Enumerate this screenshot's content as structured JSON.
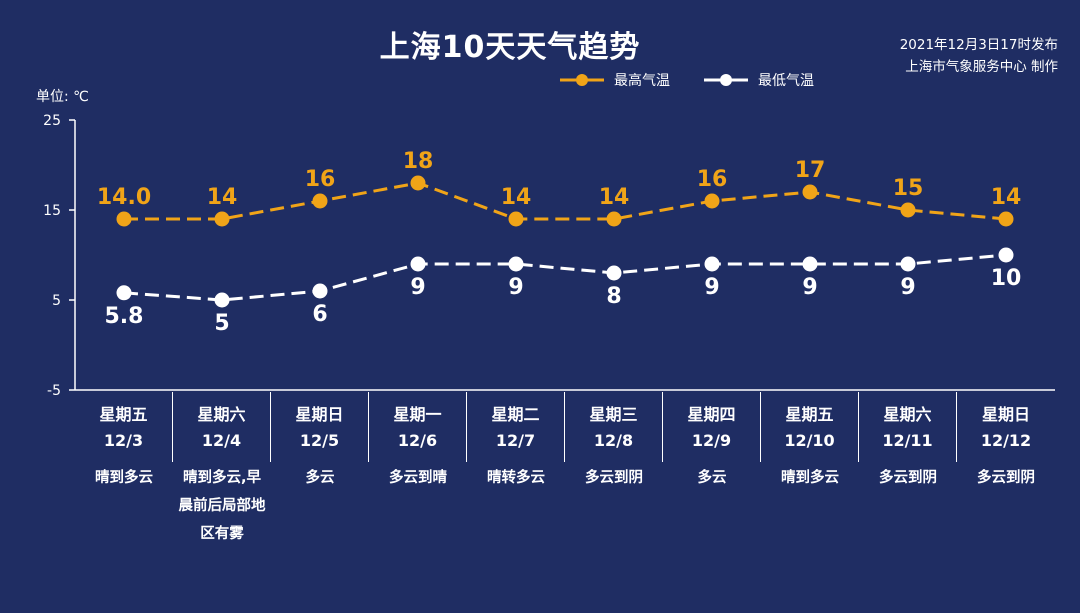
{
  "header": {
    "title": "上海10天天气趋势",
    "publish_line1": "2021年12月3日17时发布",
    "publish_line2": "上海市气象服务中心 制作",
    "unit_label": "单位: ℃"
  },
  "colors": {
    "background": "#1f2d63",
    "high": "#f0a418",
    "low": "#ffffff"
  },
  "days": [
    {
      "dow": "星期五",
      "date": "12/3",
      "desc": "晴到多云"
    },
    {
      "dow": "星期六",
      "date": "12/4",
      "desc": "晴到多云,早晨前后局部地区有雾"
    },
    {
      "dow": "星期日",
      "date": "12/5",
      "desc": "多云"
    },
    {
      "dow": "星期一",
      "date": "12/6",
      "desc": "多云到晴"
    },
    {
      "dow": "星期二",
      "date": "12/7",
      "desc": "晴转多云"
    },
    {
      "dow": "星期三",
      "date": "12/8",
      "desc": "多云到阴"
    },
    {
      "dow": "星期四",
      "date": "12/9",
      "desc": "多云"
    },
    {
      "dow": "星期五",
      "date": "12/10",
      "desc": "晴到多云"
    },
    {
      "dow": "星期六",
      "date": "12/11",
      "desc": "多云到阴"
    },
    {
      "dow": "星期日",
      "date": "12/12",
      "desc": "多云到阴"
    }
  ],
  "chart_data": {
    "type": "line",
    "title": "上海10天天气趋势",
    "ylabel": "单位: ℃",
    "ylim": [
      -5,
      25
    ],
    "yticks": [
      "25",
      "15",
      "5",
      "-5"
    ],
    "categories": [
      "12/3",
      "12/4",
      "12/5",
      "12/6",
      "12/7",
      "12/8",
      "12/9",
      "12/10",
      "12/11",
      "12/12"
    ],
    "legend_position": "top",
    "series": [
      {
        "name": "最高气温",
        "values": [
          14.0,
          14,
          16,
          18,
          14,
          14,
          16,
          17,
          15,
          14
        ],
        "labels": [
          "14.0",
          "14",
          "16",
          "18",
          "14",
          "14",
          "16",
          "17",
          "15",
          "14"
        ],
        "color": "#f0a418"
      },
      {
        "name": "最低气温",
        "values": [
          5.8,
          5,
          6,
          9,
          9,
          8,
          9,
          9,
          9,
          10
        ],
        "labels": [
          "5.8",
          "5",
          "6",
          "9",
          "9",
          "8",
          "9",
          "9",
          "9",
          "10"
        ],
        "color": "#ffffff"
      }
    ]
  }
}
